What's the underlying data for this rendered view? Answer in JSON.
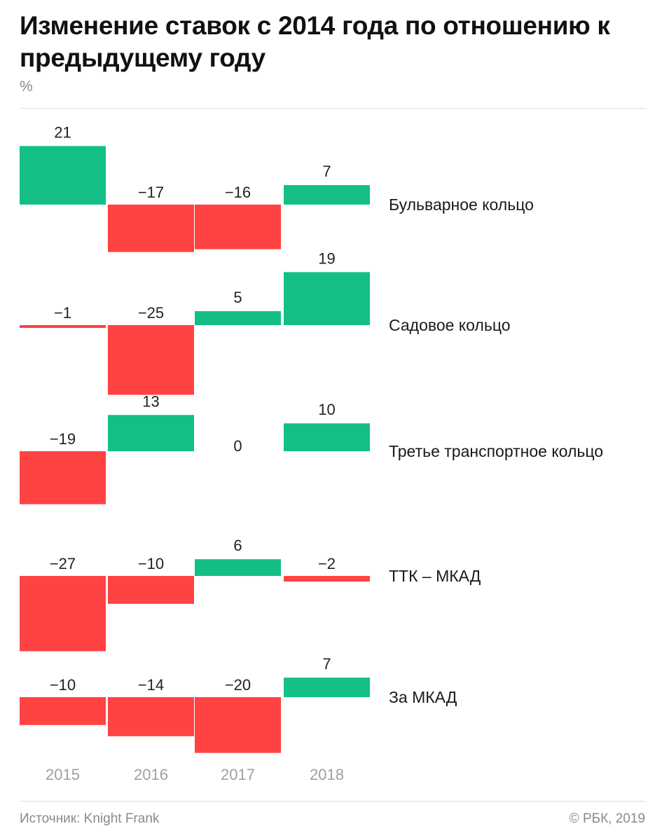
{
  "header": {
    "title": "Изменение ставок с 2014 года по отношению к предыдущему году",
    "unit": "%"
  },
  "footer": {
    "source": "Источник: Knight Frank",
    "credit": "© РБК, 2019"
  },
  "colors": {
    "positive": "#13bf86",
    "negative": "#ff4242",
    "year_labels": "#a0a0a0"
  },
  "chart_data": {
    "type": "bar",
    "title": "Изменение ставок с 2014 года по отношению к предыдущему году",
    "ylabel": "%",
    "categories": [
      "2015",
      "2016",
      "2017",
      "2018"
    ],
    "series": [
      {
        "name": "Бульварное кольцо",
        "values": [
          21,
          -17,
          -16,
          7
        ]
      },
      {
        "name": "Садовое кольцо",
        "values": [
          -1,
          -25,
          5,
          19
        ]
      },
      {
        "name": "Третье транспортное кольцо",
        "values": [
          -19,
          13,
          0,
          10
        ]
      },
      {
        "name": "ТТК – МКАД",
        "values": [
          -27,
          -10,
          6,
          -2
        ]
      },
      {
        "name": "За МКАД",
        "values": [
          -10,
          -14,
          -20,
          7
        ]
      }
    ],
    "legend": "right"
  }
}
